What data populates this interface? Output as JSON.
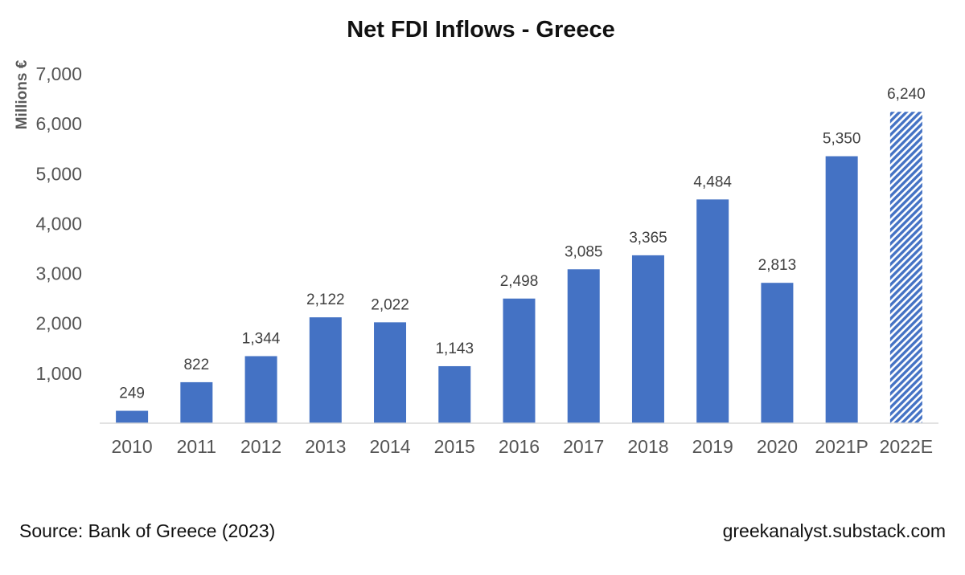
{
  "chart_data": {
    "type": "bar",
    "title": "Net FDI Inflows - Greece",
    "ylabel": "Millions €",
    "xlabel": "",
    "categories": [
      "2010",
      "2011",
      "2012",
      "2013",
      "2014",
      "2015",
      "2016",
      "2017",
      "2018",
      "2019",
      "2020",
      "2021P",
      "2022E"
    ],
    "values": [
      249,
      822,
      1344,
      2122,
      2022,
      1143,
      2498,
      3085,
      3365,
      4484,
      2813,
      5350,
      6240
    ],
    "data_labels": [
      "249",
      "822",
      "1,344",
      "2,122",
      "2,022",
      "1,143",
      "2,498",
      "3,085",
      "3,365",
      "4,484",
      "2,813",
      "5,350",
      "6,240"
    ],
    "ylim": [
      0,
      7000
    ],
    "yticks": [
      1000,
      2000,
      3000,
      4000,
      5000,
      6000,
      7000
    ],
    "ytick_labels": [
      "1,000",
      "2,000",
      "3,000",
      "4,000",
      "5,000",
      "6,000",
      "7,000"
    ],
    "estimated_categories": [
      "2022E"
    ],
    "grid": false,
    "legend": "none",
    "colors": {
      "bar": "#4472C4",
      "estimate_hatch": "#4472C4",
      "text": "#555555",
      "title": "#111111",
      "axis_line": "#d9d9d9"
    }
  },
  "footer": {
    "source": "Source: Bank of Greece (2023)",
    "site": "greekanalyst.substack.com"
  }
}
